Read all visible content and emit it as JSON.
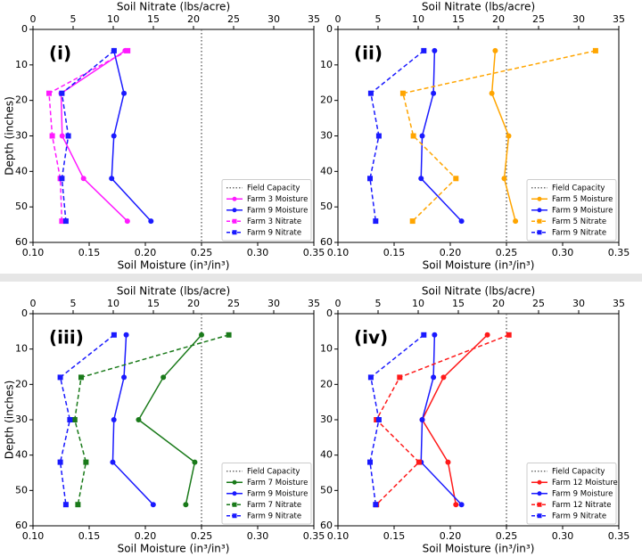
{
  "chart_data": [
    {
      "type": "line",
      "label": "(i)",
      "xlabel": "Soil Moisture (in³/in³)",
      "x2label": "Soil Nitrate (lbs/acre)",
      "ylabel": "Depth (inches)",
      "xlim": [
        0.1,
        0.35
      ],
      "xticks": [
        {
          "value": 0.1,
          "label": "0.10"
        },
        0.15,
        {
          "value": 0.2,
          "label": "0.20"
        },
        0.25,
        {
          "value": 0.3,
          "label": "0.30"
        },
        0.35
      ],
      "x2lim": [
        0,
        35
      ],
      "x2ticks": [
        0,
        5,
        10,
        15,
        20,
        25,
        30,
        35
      ],
      "ylim": [
        0,
        60
      ],
      "yticks": [
        0,
        10,
        20,
        30,
        40,
        50,
        60
      ],
      "y_inverted": true,
      "y": [
        6,
        18,
        30,
        42,
        54
      ],
      "field_capacity": {
        "name": "Field Capacity",
        "value": 0.25,
        "color": "#555555"
      },
      "series": [
        {
          "name": "Farm 3 Moisture",
          "color": "#ff1aff",
          "axis": "x",
          "linestyle": "solid",
          "marker": "circle",
          "values": [
            0.182,
            0.125,
            0.126,
            0.145,
            0.184
          ]
        },
        {
          "name": "Farm 9 Moisture",
          "color": "#1a1aff",
          "axis": "x",
          "linestyle": "solid",
          "marker": "circle",
          "values": [
            0.172,
            0.181,
            0.172,
            0.17,
            0.205
          ]
        },
        {
          "name": "Farm 3 Nitrate",
          "color": "#ff1aff",
          "axis": "x2",
          "linestyle": "dashed",
          "marker": "square",
          "values": [
            11.8,
            2.0,
            2.4,
            3.4,
            3.6
          ]
        },
        {
          "name": "Farm 9 Nitrate",
          "color": "#1a1aff",
          "axis": "x2",
          "linestyle": "dashed",
          "marker": "square",
          "values": [
            10.1,
            3.6,
            4.4,
            3.6,
            4.1
          ]
        }
      ]
    },
    {
      "type": "line",
      "label": "(ii)",
      "xlabel": "Soil Moisture (in³/in³)",
      "x2label": "Soil Nitrate (lbs/acre)",
      "xlim": [
        0.1,
        0.35
      ],
      "xticks": [
        {
          "value": 0.1,
          "label": "0.10"
        },
        0.15,
        {
          "value": 0.2,
          "label": "0.20"
        },
        0.25,
        {
          "value": 0.3,
          "label": "0.30"
        },
        0.35
      ],
      "x2lim": [
        0,
        35
      ],
      "x2ticks": [
        0,
        5,
        10,
        15,
        20,
        25,
        30,
        35
      ],
      "ylim": [
        0,
        60
      ],
      "yticks": [
        0,
        10,
        20,
        30,
        40,
        50,
        60
      ],
      "y_inverted": true,
      "y": [
        6,
        18,
        30,
        42,
        54
      ],
      "field_capacity": {
        "name": "Field Capacity",
        "value": 0.25,
        "color": "#555555"
      },
      "series": [
        {
          "name": "Farm 5 Moisture",
          "color": "#ffa500",
          "axis": "x",
          "linestyle": "solid",
          "marker": "circle",
          "values": [
            0.24,
            0.237,
            0.252,
            0.248,
            0.258
          ]
        },
        {
          "name": "Farm 9 Moisture",
          "color": "#1a1aff",
          "axis": "x",
          "linestyle": "solid",
          "marker": "circle",
          "values": [
            0.186,
            0.185,
            0.175,
            0.174,
            0.21
          ]
        },
        {
          "name": "Farm 5 Nitrate",
          "color": "#ffa500",
          "axis": "x2",
          "linestyle": "dashed",
          "marker": "square",
          "values": [
            32.1,
            8.1,
            9.4,
            14.7,
            9.3
          ]
        },
        {
          "name": "Farm 9 Nitrate",
          "color": "#1a1aff",
          "axis": "x2",
          "linestyle": "dashed",
          "marker": "square",
          "values": [
            10.7,
            4.1,
            5.1,
            4.0,
            4.7
          ]
        }
      ]
    },
    {
      "type": "line",
      "label": "(iii)",
      "xlabel": "Soil Moisture (in³/in³)",
      "x2label": "Soil Nitrate (lbs/acre)",
      "ylabel": "Depth (inches)",
      "xlim": [
        0.1,
        0.35
      ],
      "xticks": [
        {
          "value": 0.1,
          "label": "0.10"
        },
        0.15,
        {
          "value": 0.2,
          "label": "0.20"
        },
        0.25,
        {
          "value": 0.3,
          "label": "0.30"
        },
        0.35
      ],
      "x2lim": [
        0,
        35
      ],
      "x2ticks": [
        0,
        5,
        10,
        15,
        20,
        25,
        30,
        35
      ],
      "ylim": [
        0,
        60
      ],
      "yticks": [
        0,
        10,
        20,
        30,
        40,
        50,
        60
      ],
      "y_inverted": true,
      "y": [
        6,
        18,
        30,
        42,
        54
      ],
      "field_capacity": {
        "name": "Field Capacity",
        "value": 0.25,
        "color": "#555555"
      },
      "series": [
        {
          "name": "Farm 7 Moisture",
          "color": "#1a7a1a",
          "axis": "x",
          "linestyle": "solid",
          "marker": "circle",
          "values": [
            0.25,
            0.216,
            0.194,
            0.244,
            0.236
          ]
        },
        {
          "name": "Farm 9 Moisture",
          "color": "#1a1aff",
          "axis": "x",
          "linestyle": "solid",
          "marker": "circle",
          "values": [
            0.183,
            0.181,
            0.172,
            0.171,
            0.207
          ]
        },
        {
          "name": "Farm 7 Nitrate",
          "color": "#1a7a1a",
          "axis": "x2",
          "linestyle": "dashed",
          "marker": "square",
          "values": [
            24.4,
            6.0,
            5.2,
            6.6,
            5.6
          ]
        },
        {
          "name": "Farm 9 Nitrate",
          "color": "#1a1aff",
          "axis": "x2",
          "linestyle": "dashed",
          "marker": "square",
          "values": [
            10.1,
            3.4,
            4.6,
            3.4,
            4.1
          ]
        }
      ]
    },
    {
      "type": "line",
      "label": "(iv)",
      "xlabel": "Soil Moisture (in³/in³)",
      "x2label": "Soil Nitrate (lbs/acre)",
      "xlim": [
        0.1,
        0.35
      ],
      "xticks": [
        {
          "value": 0.1,
          "label": "0.10"
        },
        0.15,
        {
          "value": 0.2,
          "label": "0.20"
        },
        0.25,
        {
          "value": 0.3,
          "label": "0.30"
        },
        0.35
      ],
      "x2lim": [
        0,
        35
      ],
      "x2ticks": [
        0,
        5,
        10,
        15,
        20,
        25,
        30,
        35
      ],
      "ylim": [
        0,
        60
      ],
      "yticks": [
        0,
        10,
        20,
        30,
        40,
        50,
        60
      ],
      "y_inverted": true,
      "y": [
        6,
        18,
        30,
        42,
        54
      ],
      "field_capacity": {
        "name": "Field Capacity",
        "value": 0.25,
        "color": "#555555"
      },
      "series": [
        {
          "name": "Farm 12 Moisture",
          "color": "#ff1a1a",
          "axis": "x",
          "linestyle": "solid",
          "marker": "circle",
          "values": [
            0.233,
            0.194,
            0.175,
            0.198,
            0.205
          ]
        },
        {
          "name": "Farm 9 Moisture",
          "color": "#1a1aff",
          "axis": "x",
          "linestyle": "solid",
          "marker": "circle",
          "values": [
            0.186,
            0.185,
            0.175,
            0.174,
            0.21
          ]
        },
        {
          "name": "Farm 12 Nitrate",
          "color": "#ff1a1a",
          "axis": "x2",
          "linestyle": "dashed",
          "marker": "square",
          "values": [
            21.3,
            7.7,
            4.8,
            10.1,
            4.8
          ]
        },
        {
          "name": "Farm 9 Nitrate",
          "color": "#1a1aff",
          "axis": "x2",
          "linestyle": "dashed",
          "marker": "square",
          "values": [
            10.7,
            4.1,
            5.1,
            4.0,
            4.7
          ]
        }
      ]
    }
  ]
}
